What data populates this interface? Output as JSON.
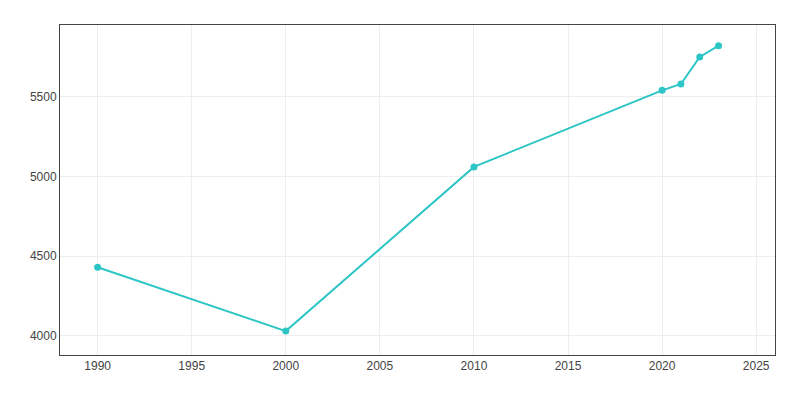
{
  "chart_data": {
    "type": "line",
    "x": [
      1990,
      2000,
      2010,
      2020,
      2021,
      2022,
      2023
    ],
    "values": [
      4430,
      4030,
      5060,
      5540,
      5580,
      5750,
      5820
    ],
    "color": "#2dc5c5",
    "marker": "circle",
    "xlim": [
      1988,
      2026
    ],
    "ylim": [
      3880,
      5950
    ],
    "xticks": [
      1990,
      1995,
      2000,
      2005,
      2010,
      2015,
      2020,
      2025
    ],
    "yticks": [
      4000,
      4500,
      5000,
      5500
    ],
    "grid": true
  }
}
